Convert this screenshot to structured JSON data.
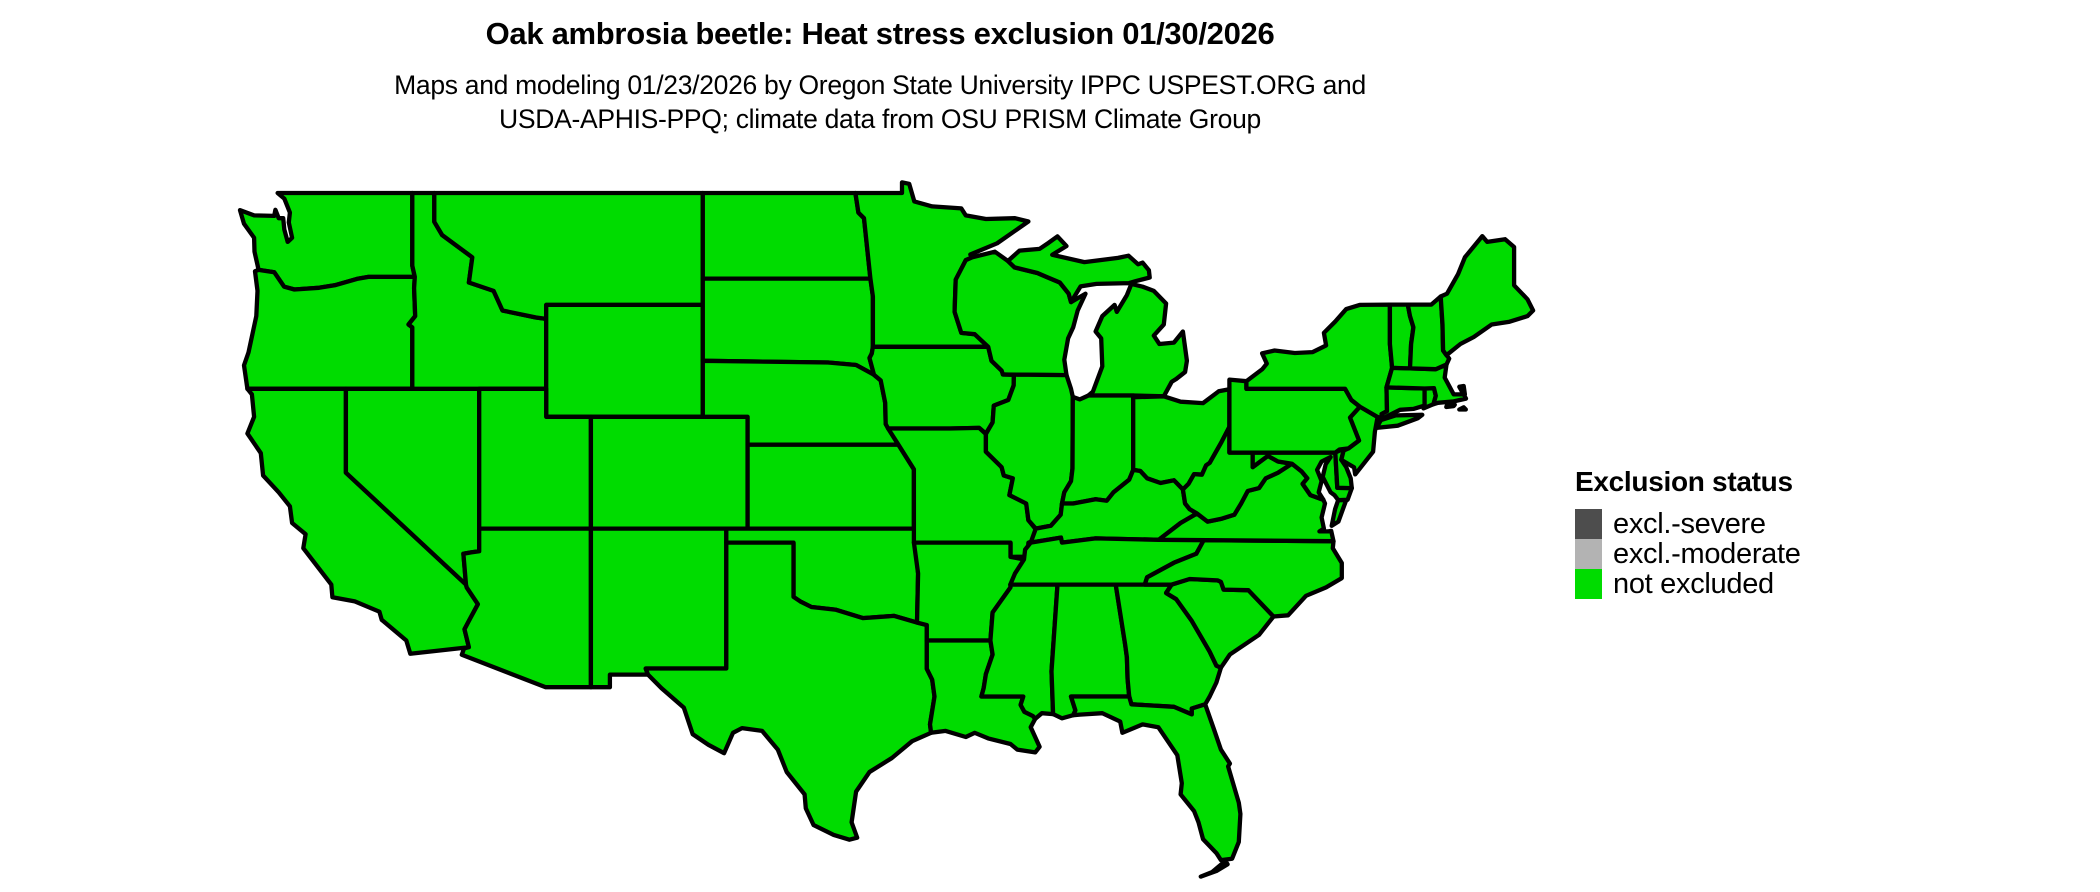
{
  "title": "Oak ambrosia beetle: Heat stress exclusion 01/30/2026",
  "subtitle_line1": "Maps and modeling 01/23/2026 by Oregon State University IPPC USPEST.ORG and",
  "subtitle_line2": "USDA-APHIS-PPQ; climate data from OSU PRISM Climate Group",
  "legend": {
    "title": "Exclusion status",
    "entries": [
      {
        "label": "excl.-severe",
        "color": "#4d4d4d"
      },
      {
        "label": "excl.-moderate",
        "color": "#b3b3b3"
      },
      {
        "label": "not excluded",
        "color": "#00dc00"
      }
    ]
  },
  "map": {
    "border_color": "#000000",
    "background_color": "#ffffff",
    "states": [
      {
        "id": "WA",
        "name": "Washington",
        "status": "not excluded"
      },
      {
        "id": "OR",
        "name": "Oregon",
        "status": "not excluded"
      },
      {
        "id": "CA",
        "name": "California",
        "status": "not excluded"
      },
      {
        "id": "NV",
        "name": "Nevada",
        "status": "not excluded"
      },
      {
        "id": "ID",
        "name": "Idaho",
        "status": "not excluded"
      },
      {
        "id": "MT",
        "name": "Montana",
        "status": "not excluded"
      },
      {
        "id": "WY",
        "name": "Wyoming",
        "status": "not excluded"
      },
      {
        "id": "UT",
        "name": "Utah",
        "status": "not excluded"
      },
      {
        "id": "CO",
        "name": "Colorado",
        "status": "not excluded"
      },
      {
        "id": "AZ",
        "name": "Arizona",
        "status": "not excluded"
      },
      {
        "id": "NM",
        "name": "New Mexico",
        "status": "not excluded"
      },
      {
        "id": "ND",
        "name": "North Dakota",
        "status": "not excluded"
      },
      {
        "id": "SD",
        "name": "South Dakota",
        "status": "not excluded"
      },
      {
        "id": "NE",
        "name": "Nebraska",
        "status": "not excluded"
      },
      {
        "id": "KS",
        "name": "Kansas",
        "status": "not excluded"
      },
      {
        "id": "OK",
        "name": "Oklahoma",
        "status": "not excluded"
      },
      {
        "id": "TX",
        "name": "Texas",
        "status": "not excluded"
      },
      {
        "id": "MN",
        "name": "Minnesota",
        "status": "not excluded"
      },
      {
        "id": "IA",
        "name": "Iowa",
        "status": "not excluded"
      },
      {
        "id": "MO",
        "name": "Missouri",
        "status": "not excluded"
      },
      {
        "id": "AR",
        "name": "Arkansas",
        "status": "not excluded"
      },
      {
        "id": "LA",
        "name": "Louisiana",
        "status": "not excluded"
      },
      {
        "id": "WI",
        "name": "Wisconsin",
        "status": "not excluded"
      },
      {
        "id": "IL",
        "name": "Illinois",
        "status": "not excluded"
      },
      {
        "id": "MI",
        "name": "Michigan",
        "status": "not excluded"
      },
      {
        "id": "IN",
        "name": "Indiana",
        "status": "not excluded"
      },
      {
        "id": "OH",
        "name": "Ohio",
        "status": "not excluded"
      },
      {
        "id": "KY",
        "name": "Kentucky",
        "status": "not excluded"
      },
      {
        "id": "TN",
        "name": "Tennessee",
        "status": "not excluded"
      },
      {
        "id": "MS",
        "name": "Mississippi",
        "status": "not excluded"
      },
      {
        "id": "AL",
        "name": "Alabama",
        "status": "not excluded"
      },
      {
        "id": "GA",
        "name": "Georgia",
        "status": "not excluded"
      },
      {
        "id": "FL",
        "name": "Florida",
        "status": "not excluded"
      },
      {
        "id": "SC",
        "name": "South Carolina",
        "status": "not excluded"
      },
      {
        "id": "NC",
        "name": "North Carolina",
        "status": "not excluded"
      },
      {
        "id": "VA",
        "name": "Virginia",
        "status": "not excluded"
      },
      {
        "id": "WV",
        "name": "West Virginia",
        "status": "not excluded"
      },
      {
        "id": "MD",
        "name": "Maryland",
        "status": "not excluded"
      },
      {
        "id": "DE",
        "name": "Delaware",
        "status": "not excluded"
      },
      {
        "id": "NJ",
        "name": "New Jersey",
        "status": "not excluded"
      },
      {
        "id": "PA",
        "name": "Pennsylvania",
        "status": "not excluded"
      },
      {
        "id": "NY",
        "name": "New York",
        "status": "not excluded"
      },
      {
        "id": "CT",
        "name": "Connecticut",
        "status": "not excluded"
      },
      {
        "id": "RI",
        "name": "Rhode Island",
        "status": "not excluded"
      },
      {
        "id": "MA",
        "name": "Massachusetts",
        "status": "not excluded"
      },
      {
        "id": "VT",
        "name": "Vermont",
        "status": "not excluded"
      },
      {
        "id": "NH",
        "name": "New Hampshire",
        "status": "not excluded"
      },
      {
        "id": "ME",
        "name": "Maine",
        "status": "not excluded"
      }
    ]
  }
}
